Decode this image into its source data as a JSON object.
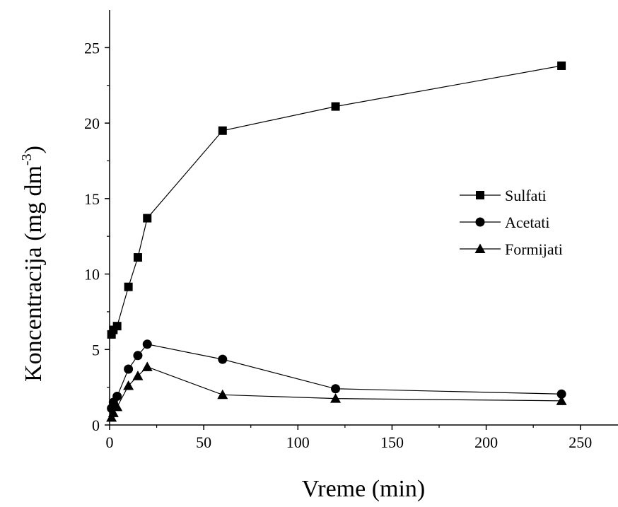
{
  "chart_data": {
    "type": "line",
    "title": "",
    "xlabel": "Vreme (min)",
    "ylabel_main": "Koncentracija (mg dm",
    "ylabel_sup": "-3",
    "ylabel_close": ")",
    "xlim": [
      0,
      270
    ],
    "ylim": [
      0,
      27.5
    ],
    "xticks": [
      0,
      50,
      100,
      150,
      200,
      250
    ],
    "yticks": [
      0,
      5,
      10,
      15,
      20,
      25
    ],
    "grid": false,
    "legend_position": "right-middle",
    "series": [
      {
        "name": "Sulfati",
        "marker": "square",
        "x": [
          1,
          2,
          4,
          10,
          15,
          20,
          60,
          120,
          240
        ],
        "y": [
          6.0,
          6.3,
          6.55,
          9.15,
          11.1,
          13.7,
          19.5,
          21.1,
          23.8
        ]
      },
      {
        "name": "Acetati",
        "marker": "circle",
        "x": [
          1,
          2,
          4,
          10,
          15,
          20,
          60,
          120,
          240
        ],
        "y": [
          1.1,
          1.5,
          1.9,
          3.7,
          4.6,
          5.35,
          4.35,
          2.4,
          2.05
        ]
      },
      {
        "name": "Formijati",
        "marker": "triangle",
        "x": [
          1,
          2,
          4,
          10,
          15,
          20,
          60,
          120,
          240
        ],
        "y": [
          0.5,
          0.8,
          1.2,
          2.6,
          3.25,
          3.85,
          2.0,
          1.75,
          1.6
        ]
      }
    ],
    "colors": {
      "line": "#000000",
      "marker": "#000000"
    }
  }
}
